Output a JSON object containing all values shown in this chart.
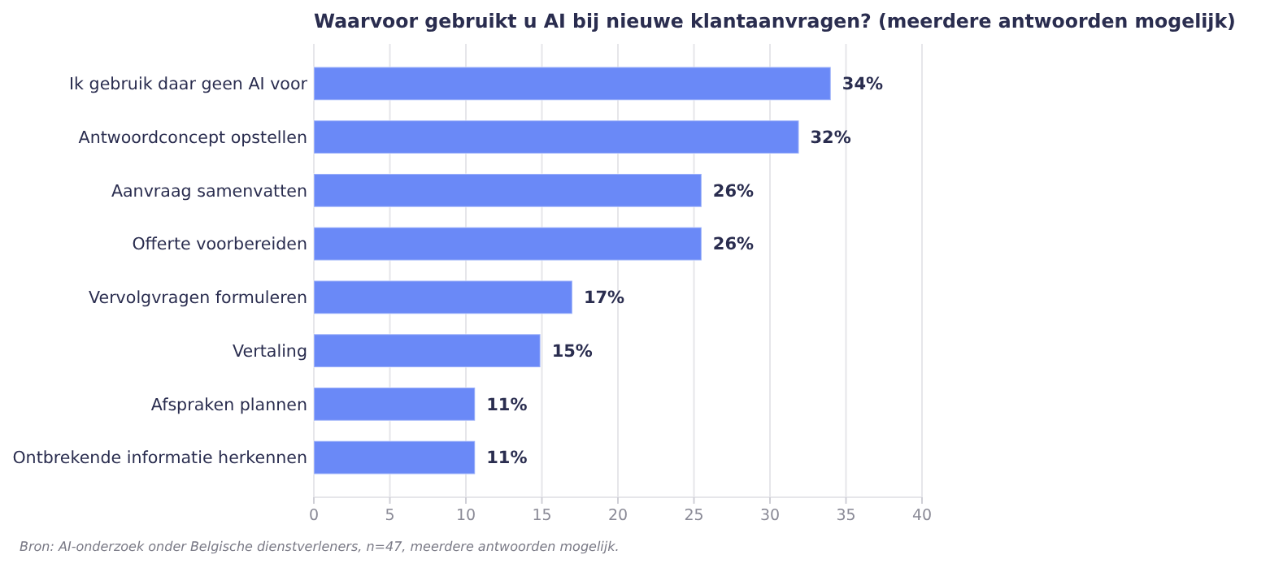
{
  "chart_data": {
    "type": "bar",
    "orientation": "horizontal",
    "title": "Waarvoor gebruikt u AI bij nieuwe klantaanvragen? (meerdere antwoorden mogelijk)",
    "categories": [
      "Ik gebruik daar geen AI voor",
      "Antwoordconcept opstellen",
      "Aanvraag samenvatten",
      "Offerte voorbereiden",
      "Vervolgvragen formuleren",
      "Vertaling",
      "Afspraken plannen",
      "Ontbrekende informatie herkennen"
    ],
    "values": [
      34,
      31.9,
      25.5,
      25.5,
      17,
      14.9,
      10.6,
      10.6
    ],
    "value_labels": [
      "34%",
      "32%",
      "26%",
      "26%",
      "17%",
      "15%",
      "11%",
      "11%"
    ],
    "color": "#6a89f7",
    "xlim": [
      0,
      40
    ],
    "xticks": [
      0,
      5,
      10,
      15,
      20,
      25,
      30,
      35,
      40
    ],
    "grid": "x",
    "annotations": [
      "Bron: AI-onderzoek onder Belgische dienstverleners, n=47, meerdere antwoorden mogelijk."
    ]
  }
}
